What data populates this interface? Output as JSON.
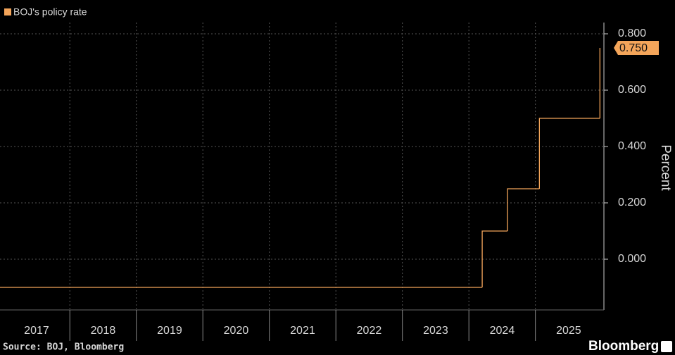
{
  "chart_data": {
    "type": "step",
    "legend_label": "BOJ's policy rate",
    "y_axis_label": "Percent",
    "source": "Source: BOJ, Bloomberg",
    "brand": "Bloomberg",
    "x": [
      2016.95,
      2024.2,
      2024.58,
      2025.06,
      2025.97
    ],
    "values": [
      -0.1,
      0.1,
      0.25,
      0.5,
      0.75
    ],
    "value_labels": [
      null,
      null,
      null,
      null,
      "0.750"
    ],
    "color": "#f4a55a",
    "xlim": [
      2016.95,
      2026.03
    ],
    "xticks": [
      {
        "value": 2017.5,
        "label": "2017"
      },
      {
        "value": 2018.5,
        "label": "2018"
      },
      {
        "value": 2019.5,
        "label": "2019"
      },
      {
        "value": 2020.5,
        "label": "2020"
      },
      {
        "value": 2021.5,
        "label": "2021"
      },
      {
        "value": 2022.5,
        "label": "2022"
      },
      {
        "value": 2023.5,
        "label": "2023"
      },
      {
        "value": 2024.5,
        "label": "2024"
      },
      {
        "value": 2025.5,
        "label": "2025"
      }
    ],
    "ylim": [
      -0.18,
      0.84
    ],
    "yticks": [
      {
        "value": 0,
        "label": "0.000"
      },
      {
        "value": 0.2,
        "label": "0.200"
      },
      {
        "value": 0.4,
        "label": "0.400"
      },
      {
        "value": 0.6,
        "label": "0.600"
      },
      {
        "value": 0.8,
        "label": "0.800"
      }
    ],
    "grid": true
  }
}
